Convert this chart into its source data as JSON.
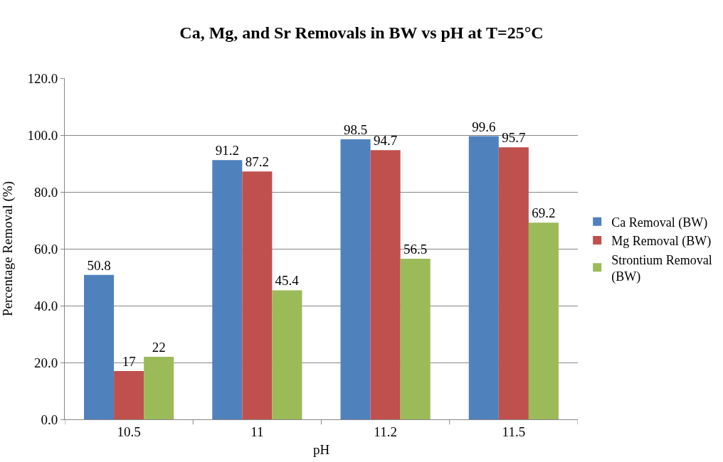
{
  "chart_data": {
    "type": "bar",
    "title": "Ca, Mg, and Sr Removals in BW vs pH at T=25°C",
    "xlabel": "pH",
    "ylabel": "Percentage Removal (%)",
    "categories": [
      "10.5",
      "11",
      "11.2",
      "11.5"
    ],
    "series": [
      {
        "name": "Ca Removal (BW)",
        "color": "#4f81bd",
        "values": [
          50.8,
          91.2,
          98.5,
          99.6
        ],
        "value_labels": [
          "50.8",
          "91.2",
          "98.5",
          "99.6"
        ]
      },
      {
        "name": "Mg Removal (BW)",
        "color": "#c0504d",
        "values": [
          17,
          87.2,
          94.7,
          95.7
        ],
        "value_labels": [
          "17",
          "87.2",
          "94.7",
          "95.7"
        ]
      },
      {
        "name": "Strontium Removal (BW)",
        "color": "#9bbb59",
        "values": [
          22,
          45.4,
          56.5,
          69.2
        ],
        "value_labels": [
          "22",
          "45.4",
          "56.5",
          "69.2"
        ]
      }
    ],
    "ylim": [
      0,
      120
    ],
    "yticks": [
      {
        "value": 0,
        "label": "0.0"
      },
      {
        "value": 20,
        "label": "20.0"
      },
      {
        "value": 40,
        "label": "40.0"
      },
      {
        "value": 60,
        "label": "60.0"
      },
      {
        "value": 80,
        "label": "80.0"
      },
      {
        "value": 100,
        "label": "100.0"
      },
      {
        "value": 120,
        "label": "120.0"
      }
    ],
    "grid": "y",
    "legend": "right"
  }
}
